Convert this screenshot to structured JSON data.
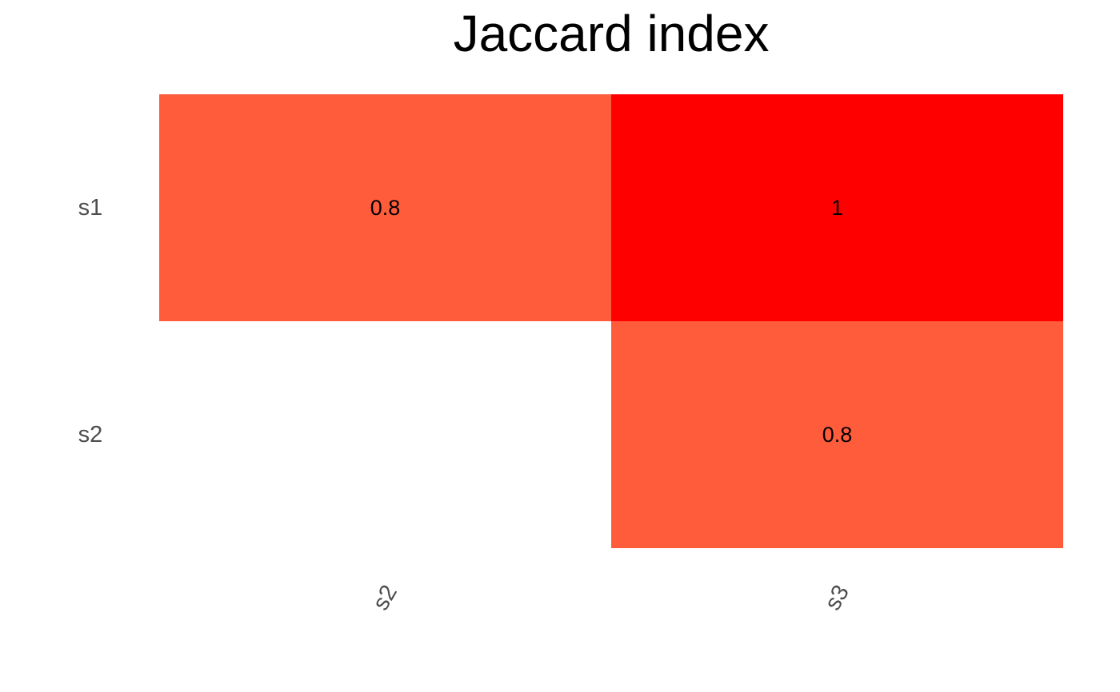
{
  "chart_data": {
    "type": "heatmap",
    "title": "Jaccard index",
    "xlabel": "",
    "ylabel": "",
    "x_categories": [
      "s2",
      "s3"
    ],
    "y_categories": [
      "s1",
      "s2"
    ],
    "cells": [
      {
        "row": "s1",
        "col": "s2",
        "value": 0.8,
        "label": "0.8",
        "color": "#ff5c3c"
      },
      {
        "row": "s1",
        "col": "s3",
        "value": 1,
        "label": "1",
        "color": "#ff0000"
      },
      {
        "row": "s2",
        "col": "s3",
        "value": 0.8,
        "label": "0.8",
        "color": "#ff5c3c"
      }
    ],
    "grid": false,
    "legend": "none"
  },
  "colors": {
    "background": "#ffffff",
    "high": "#ff0000",
    "mid": "#ff5c3c",
    "label_text": "#4d4d4d"
  }
}
